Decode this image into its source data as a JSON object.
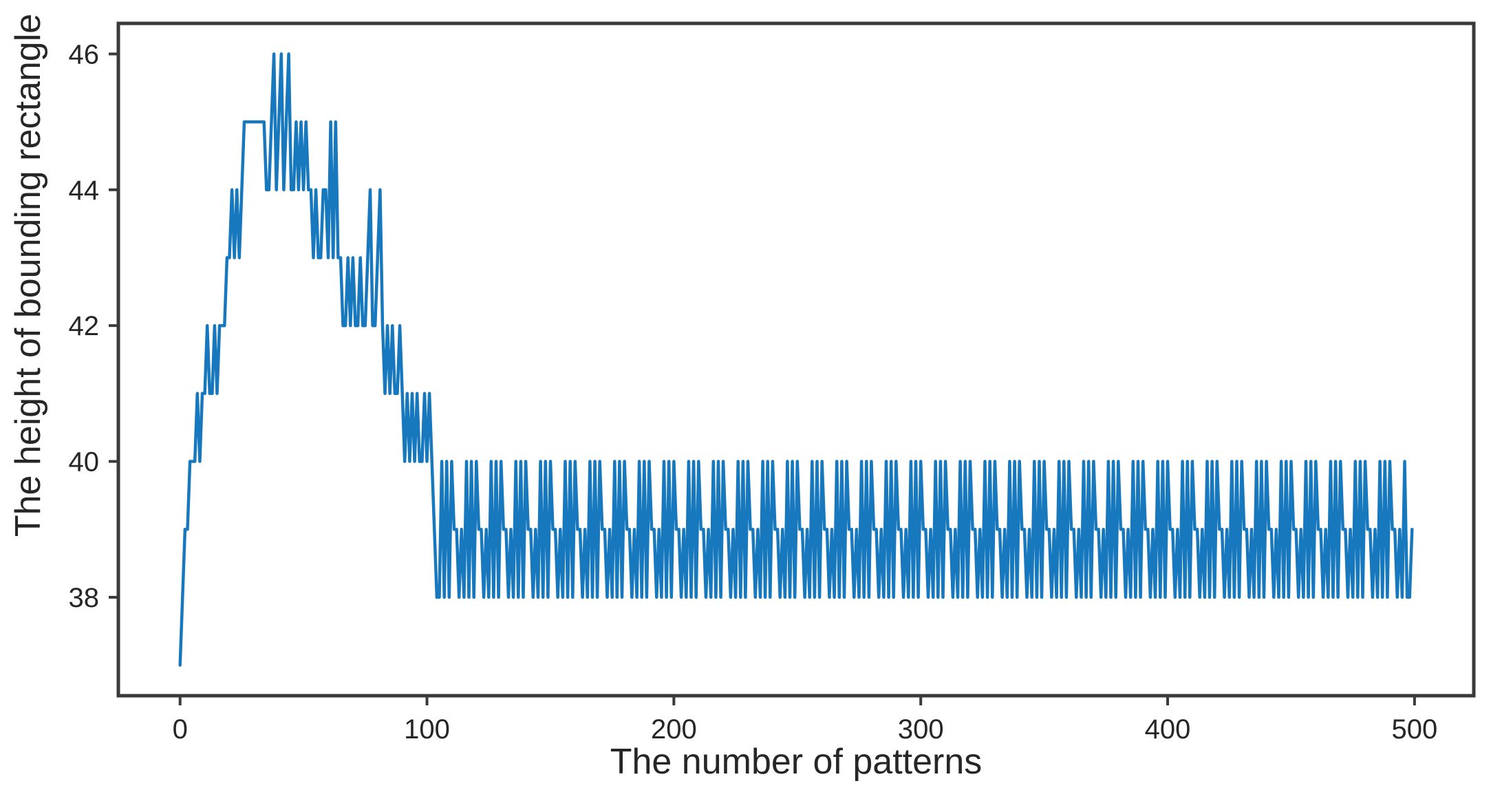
{
  "chart_data": {
    "type": "line",
    "title": "",
    "xlabel": "The number of patterns",
    "ylabel": "The height of bounding rectangle",
    "x_ticks": [
      0,
      100,
      200,
      300,
      400,
      500
    ],
    "y_ticks": [
      38,
      40,
      42,
      44,
      46
    ],
    "xlim": [
      -25,
      524
    ],
    "ylim": [
      36.55,
      46.45
    ],
    "grid": false,
    "legend": "none",
    "line_color": "#1878be",
    "spine_color": "#3a3a3a",
    "tick_color": "#3a3a3a",
    "text_color": "#262626",
    "series": [
      {
        "name": "height of bounding rectangle",
        "x_start": 0,
        "x_step": 1,
        "y_head": [
          37,
          38,
          39,
          39,
          40,
          40,
          40,
          41,
          40,
          41,
          41,
          42,
          41,
          41,
          42,
          41,
          42,
          42,
          42,
          43,
          43,
          44,
          43,
          44,
          43,
          44,
          45,
          45,
          45,
          45,
          45,
          45,
          45,
          45,
          45,
          44,
          44,
          45,
          46,
          44,
          45,
          46,
          44,
          45,
          46,
          44,
          44,
          45,
          44,
          45,
          44,
          45,
          44,
          44,
          43,
          44,
          43,
          43,
          44,
          44,
          43,
          45,
          43,
          45,
          43,
          43,
          42,
          42,
          43,
          42,
          43,
          42,
          42,
          43,
          42,
          42,
          43,
          44,
          42,
          42,
          43,
          44,
          42,
          41,
          42,
          41,
          42,
          41,
          41,
          42,
          41,
          40,
          41,
          40,
          41,
          40,
          41,
          40,
          40,
          41,
          40,
          41,
          40,
          39,
          38
        ],
        "y_tail_motif": [
          38,
          40,
          38,
          40,
          38,
          40,
          39,
          39,
          38,
          39
        ],
        "y_tail_repeats": 39,
        "y_tail_ending": [
          38,
          40,
          38,
          38,
          39
        ],
        "y_min": 37,
        "y_max": 46,
        "x_end": 499
      }
    ]
  }
}
